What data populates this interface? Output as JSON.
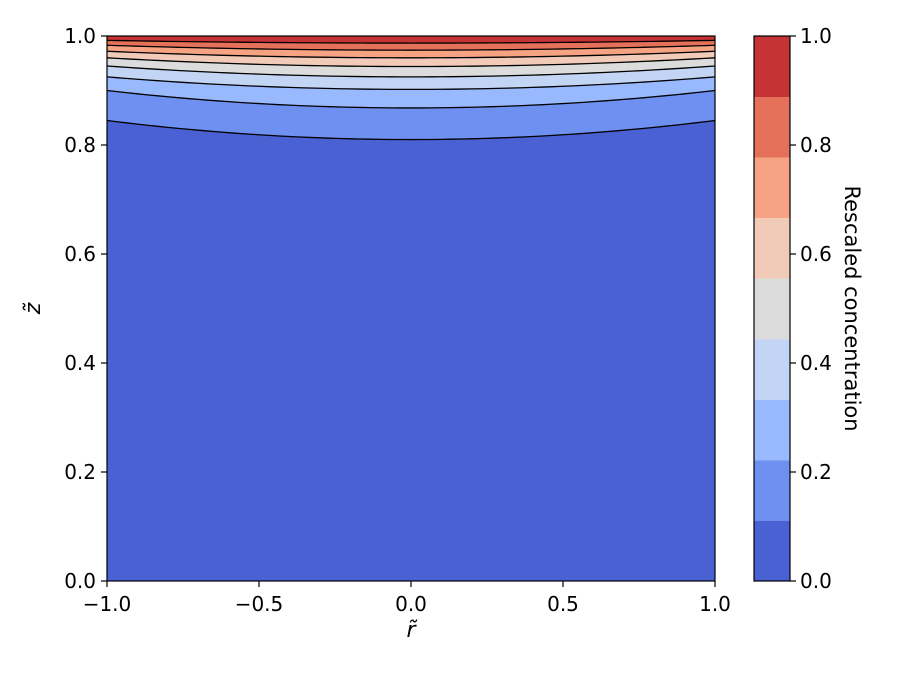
{
  "chart_data": {
    "type": "contour",
    "title": "",
    "xlabel": "r̃",
    "ylabel": "z̃",
    "xlim": [
      -1.0,
      1.0
    ],
    "ylim": [
      0.0,
      1.0
    ],
    "x_ticks": [
      -1.0,
      -0.5,
      0.0,
      0.5,
      1.0
    ],
    "x_tick_labels": [
      "−1.0",
      "−0.5",
      "0.0",
      "0.5",
      "1.0"
    ],
    "y_ticks": [
      0.0,
      0.2,
      0.4,
      0.6,
      0.8,
      1.0
    ],
    "y_tick_labels": [
      "0.0",
      "0.2",
      "0.4",
      "0.6",
      "0.8",
      "1.0"
    ],
    "colorbar": {
      "label": "Rescaled concentration",
      "range": [
        0.0,
        1.0
      ],
      "ticks": [
        0.0,
        0.2,
        0.4,
        0.6,
        0.8,
        1.0
      ],
      "tick_labels": [
        "0.0",
        "0.2",
        "0.4",
        "0.6",
        "0.8",
        "1.0"
      ],
      "levels": [
        0.0,
        0.111,
        0.222,
        0.333,
        0.444,
        0.556,
        0.667,
        0.778,
        0.889,
        1.0
      ],
      "colors": [
        "#4961d2",
        "#6e90f0",
        "#99b9fe",
        "#c3d5f4",
        "#dddcdc",
        "#f1cbb8",
        "#f6a384",
        "#e5715a",
        "#c53334"
      ]
    },
    "contour_lines": [
      {
        "level": 0.111,
        "z_at_edge": 0.845,
        "z_at_center": 0.81
      },
      {
        "level": 0.222,
        "z_at_edge": 0.9,
        "z_at_center": 0.868
      },
      {
        "level": 0.333,
        "z_at_edge": 0.925,
        "z_at_center": 0.902
      },
      {
        "level": 0.444,
        "z_at_edge": 0.945,
        "z_at_center": 0.925
      },
      {
        "level": 0.556,
        "z_at_edge": 0.96,
        "z_at_center": 0.944
      },
      {
        "level": 0.667,
        "z_at_edge": 0.972,
        "z_at_center": 0.96
      },
      {
        "level": 0.778,
        "z_at_edge": 0.983,
        "z_at_center": 0.974
      },
      {
        "level": 0.889,
        "z_at_edge": 0.992,
        "z_at_center": 0.987
      }
    ]
  }
}
